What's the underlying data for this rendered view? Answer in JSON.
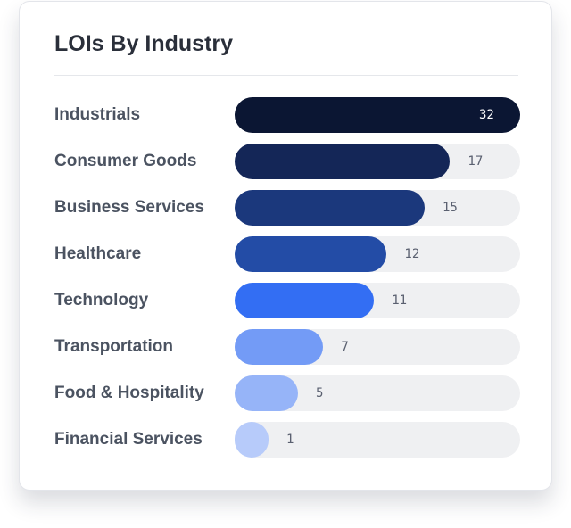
{
  "chart_data": {
    "type": "bar",
    "orientation": "horizontal",
    "title": "LOIs By Industry",
    "categories": [
      "Industrials",
      "Consumer Goods",
      "Business Services",
      "Healthcare",
      "Technology",
      "Transportation",
      "Food & Hospitality",
      "Financial Services"
    ],
    "values": [
      32,
      17,
      15,
      12,
      11,
      7,
      5,
      1
    ],
    "colors": [
      "#0b1633",
      "#142657",
      "#1b387c",
      "#234ca6",
      "#336ef3",
      "#739bf6",
      "#96b4f8",
      "#b7cbfa"
    ],
    "track_color": "#eff0f2"
  }
}
